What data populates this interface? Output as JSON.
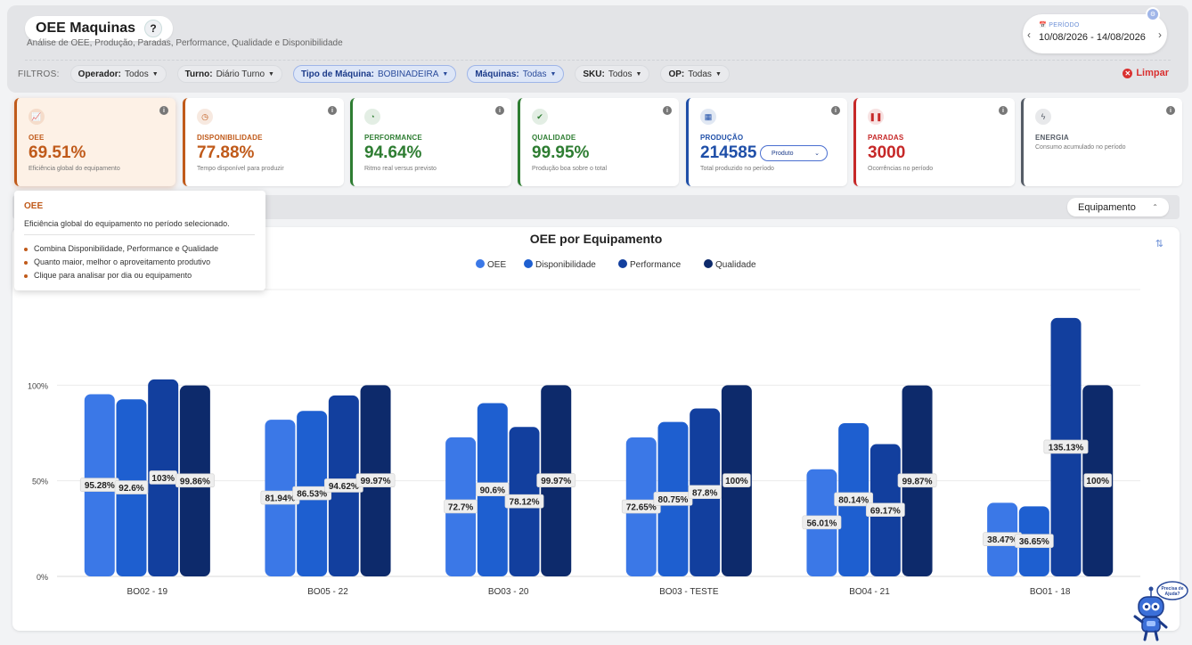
{
  "header": {
    "title": "OEE Maquinas",
    "help_label": "?",
    "subtitle": "Análise de OEE, Produção, Paradas, Performance, Qualidade e Disponibilidade"
  },
  "period": {
    "label": "PERÍODO",
    "value": "10/08/2026 - 14/08/2026",
    "prev_icon": "chevron-left-icon",
    "next_icon": "chevron-right-icon",
    "badge": "⚙"
  },
  "filters": {
    "label": "FILTROS:",
    "items": [
      {
        "key": "Operador:",
        "value": "Todos",
        "active": false
      },
      {
        "key": "Turno:",
        "value": "Diário Turno",
        "active": false
      },
      {
        "key": "Tipo de Máquina:",
        "value": "BOBINADEIRA",
        "active": true
      },
      {
        "key": "Máquinas:",
        "value": "Todas",
        "active": true
      },
      {
        "key": "SKU:",
        "value": "Todos",
        "active": false
      },
      {
        "key": "OP:",
        "value": "Todas",
        "active": false
      }
    ],
    "clear_label": "Limpar"
  },
  "kpis": [
    {
      "label": "OEE",
      "value": "69.51%",
      "desc": "Eficiência global do equipamento",
      "color": "#c05a1a",
      "icon": "chart-icon"
    },
    {
      "label": "DISPONIBILIDADE",
      "value": "77.88%",
      "desc": "Tempo disponível para produzir",
      "color": "#c05a1a",
      "icon": "clock-icon"
    },
    {
      "label": "PERFORMANCE",
      "value": "94.64%",
      "desc": "Ritmo real versus previsto",
      "color": "#2e7d32",
      "icon": "gauge-icon"
    },
    {
      "label": "QUALIDADE",
      "value": "99.95%",
      "desc": "Produção boa sobre o total",
      "color": "#2e7d32",
      "icon": "check-icon"
    },
    {
      "label": "PRODUÇÃO",
      "value": "214585",
      "desc": "Total produzido no período",
      "color": "#1f4fa8",
      "icon": "boxes-icon",
      "select": "Produto"
    },
    {
      "label": "PARADAS",
      "value": "3000",
      "desc": "Ocorrências no período",
      "color": "#c62828",
      "icon": "pause-icon"
    },
    {
      "label": "ENERGIA",
      "value": "",
      "desc": "Consumo acumulado no período",
      "color": "#555c66",
      "icon": "bolt-icon"
    }
  ],
  "tooltip": {
    "title": "OEE",
    "desc": "Eficiência global do equipamento no período selecionado.",
    "bullets": [
      "Combina Disponibilidade, Performance e Qualidade",
      "Quanto maior, melhor o aproveitamento produtivo",
      "Clique para analisar por dia ou equipamento"
    ]
  },
  "toolbar": {
    "group_select": "Equipamento"
  },
  "chart_data": {
    "type": "bar",
    "title": "OEE por Equipamento",
    "categories": [
      "BO02 - 19",
      "BO05 - 22",
      "BO03 - 20",
      "BO03 - TESTE",
      "BO04 - 21",
      "BO01 - 18"
    ],
    "series": [
      {
        "name": "OEE",
        "color": "#3b78e7",
        "values": [
          95.28,
          81.94,
          72.7,
          72.65,
          56.01,
          38.47
        ],
        "labels": [
          "95.28%",
          "81.94%",
          "72.7%",
          "72.65%",
          "56.01%",
          "38.47%"
        ]
      },
      {
        "name": "Disponibilidade",
        "color": "#1e5fd0",
        "values": [
          92.6,
          86.53,
          90.6,
          80.75,
          80.14,
          36.65
        ],
        "labels": [
          "92.6%",
          "86.53%",
          "90.6%",
          "80.75%",
          "80.14%",
          "36.65%"
        ]
      },
      {
        "name": "Performance",
        "color": "#123f9e",
        "values": [
          103,
          94.62,
          78.12,
          87.8,
          69.17,
          135.13
        ],
        "labels": [
          "103%",
          "94.62%",
          "78.12%",
          "87.8%",
          "69.17%",
          "135.13%"
        ]
      },
      {
        "name": "Qualidade",
        "color": "#0d2a6b",
        "values": [
          99.86,
          99.97,
          99.97,
          100,
          99.87,
          100
        ],
        "labels": [
          "99.86%",
          "99.97%",
          "99.97%",
          "100%",
          "99.87%",
          "100%"
        ]
      }
    ],
    "yticks": [
      "0%",
      "50%",
      "100%"
    ],
    "ylim": [
      0,
      150
    ],
    "grid": true,
    "legend": "top-center"
  },
  "helper": {
    "bubble": "Precisa de Ajuda?"
  }
}
